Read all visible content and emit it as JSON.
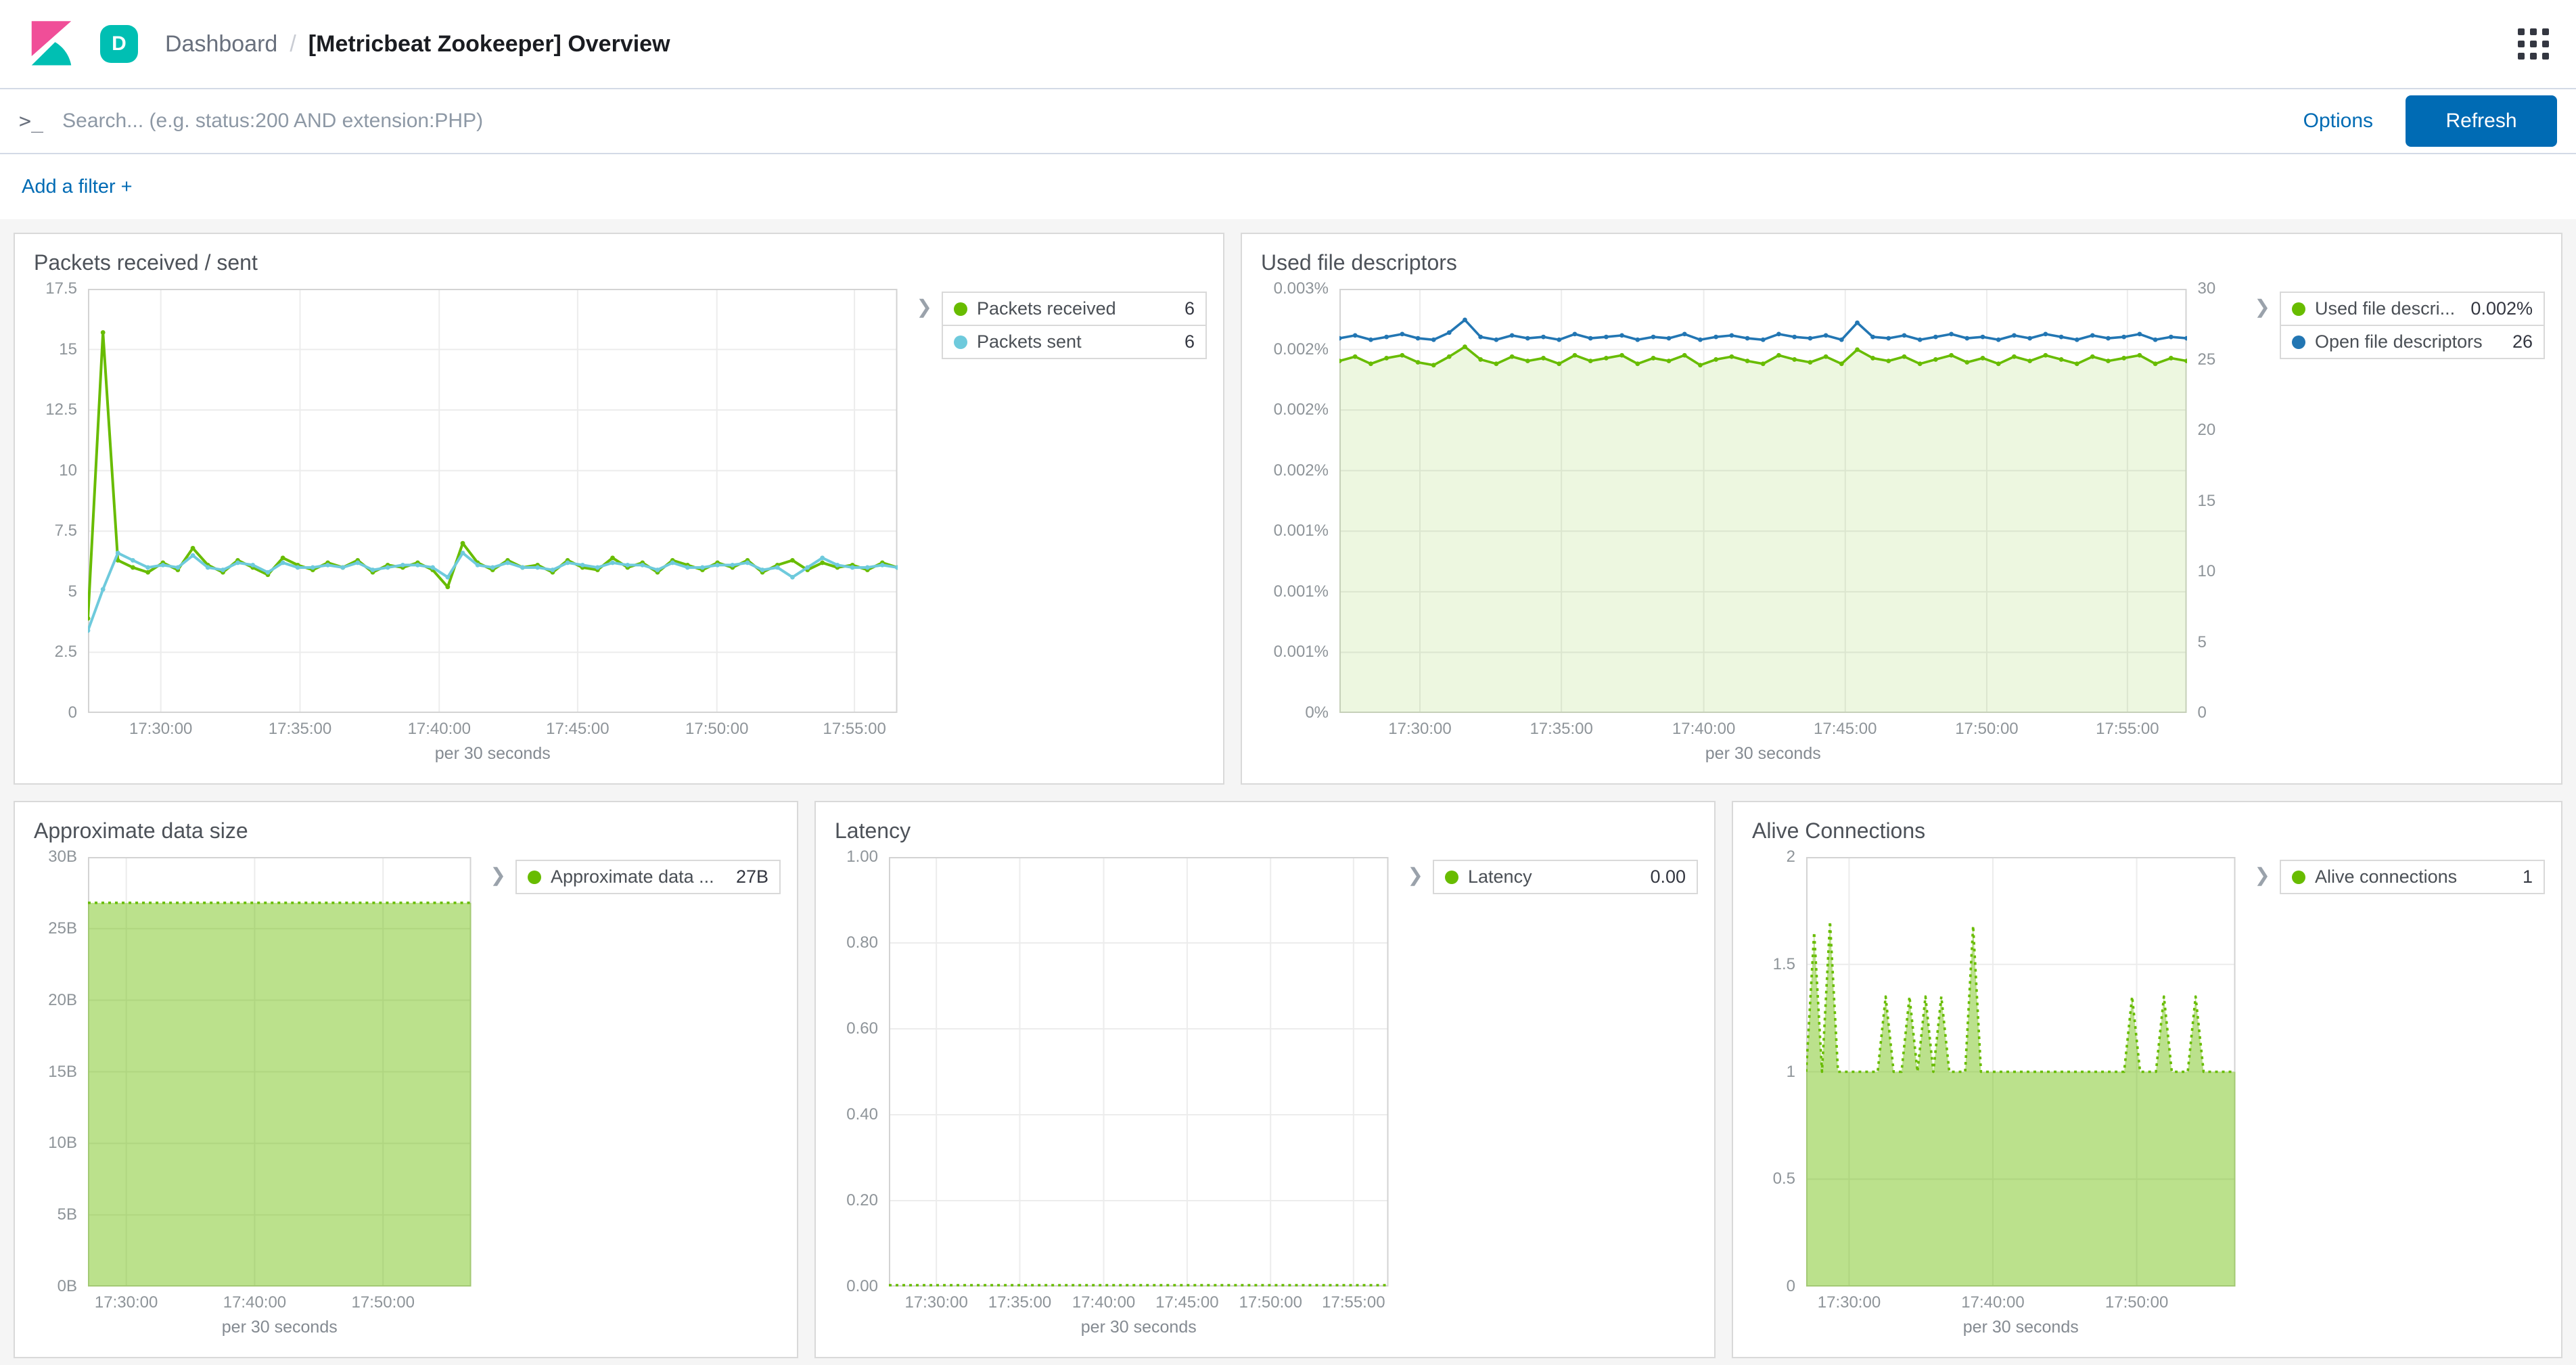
{
  "header": {
    "space_badge": "D",
    "breadcrumb_section": "Dashboard",
    "breadcrumb_separator": "/",
    "breadcrumb_page": "[Metricbeat Zookeeper] Overview"
  },
  "search": {
    "prompt_icon": ">_",
    "placeholder": "Search... (e.g. status:200 AND extension:PHP)",
    "options_label": "Options",
    "refresh_label": "Refresh"
  },
  "filter_bar": {
    "add_filter_label": "Add a filter +"
  },
  "colors": {
    "accent": "#006BB4",
    "green": "#68BC00",
    "light_blue": "#6ECADC",
    "blue": "#2276B3",
    "grid": "#ececec",
    "chart_border": "#d3d3d3"
  },
  "chart_data": [
    {
      "type": "line",
      "title": "Packets received / sent",
      "xlabel": "per 30 seconds",
      "ylim": [
        0,
        17.5
      ],
      "y_tick_labels": [
        "17.5",
        "15",
        "12.5",
        "10",
        "7.5",
        "5",
        "2.5",
        "0"
      ],
      "x_ticks": {
        "labels": [
          "17:30:00",
          "17:35:00",
          "17:40:00",
          "17:45:00",
          "17:50:00",
          "17:55:00"
        ],
        "positions": [
          0.09,
          0.262,
          0.434,
          0.605,
          0.777,
          0.947
        ]
      },
      "series": [
        {
          "name": "Packets received",
          "color": "#68BC00",
          "width": 2,
          "markers": true,
          "values": [
            3.9,
            15.7,
            6.3,
            6.0,
            5.8,
            6.2,
            5.9,
            6.8,
            6.1,
            5.8,
            6.3,
            6.0,
            5.7,
            6.4,
            6.1,
            5.9,
            6.2,
            6.0,
            6.3,
            5.8,
            6.1,
            6.0,
            6.2,
            5.9,
            5.2,
            7.0,
            6.2,
            5.9,
            6.3,
            6.0,
            6.1,
            5.8,
            6.3,
            6.0,
            5.9,
            6.4,
            6.0,
            6.2,
            5.8,
            6.3,
            6.1,
            5.9,
            6.2,
            6.0,
            6.3,
            5.8,
            6.1,
            6.3,
            5.9,
            6.2,
            6.0,
            6.1,
            5.9,
            6.2,
            6.0
          ]
        },
        {
          "name": "Packets sent",
          "color": "#6ECADC",
          "width": 2,
          "markers": true,
          "values": [
            3.4,
            5.1,
            6.6,
            6.3,
            6.0,
            6.1,
            6.0,
            6.5,
            6.0,
            5.9,
            6.2,
            6.1,
            5.8,
            6.2,
            6.0,
            6.0,
            6.1,
            6.0,
            6.2,
            5.9,
            6.0,
            6.1,
            6.1,
            6.0,
            5.6,
            6.6,
            6.1,
            6.0,
            6.2,
            6.0,
            6.0,
            5.9,
            6.2,
            6.1,
            6.0,
            6.2,
            6.1,
            6.1,
            5.9,
            6.2,
            6.0,
            6.0,
            6.1,
            6.1,
            6.2,
            5.9,
            6.0,
            5.6,
            6.0,
            6.4,
            6.1,
            6.0,
            6.0,
            6.1,
            6.0
          ]
        }
      ],
      "legend": [
        {
          "label": "Packets received",
          "value": "6",
          "color": "#68BC00"
        },
        {
          "label": "Packets sent",
          "value": "6",
          "color": "#6ECADC"
        }
      ]
    },
    {
      "type": "line",
      "title": "Used file descriptors",
      "xlabel": "per 30 seconds",
      "ylim": [
        0,
        0.003
      ],
      "y2lim": [
        0,
        30
      ],
      "y_tick_labels": [
        "0.003%",
        "0.002%",
        "0.002%",
        "0.002%",
        "0.001%",
        "0.001%",
        "0.001%",
        "0%"
      ],
      "y2_tick_labels": [
        "30",
        "25",
        "20",
        "15",
        "10",
        "5",
        "0"
      ],
      "x_ticks": {
        "labels": [
          "17:30:00",
          "17:35:00",
          "17:40:00",
          "17:45:00",
          "17:50:00",
          "17:55:00"
        ],
        "positions": [
          0.095,
          0.262,
          0.43,
          0.597,
          0.764,
          0.93
        ]
      },
      "series": [
        {
          "name": "Used file descriptors",
          "color": "#68BC00",
          "width": 1.8,
          "markers": true,
          "fill": "rgba(104,188,0,0.12)",
          "values": [
            0.00249,
            0.00252,
            0.00247,
            0.00251,
            0.00253,
            0.00248,
            0.00246,
            0.00252,
            0.00259,
            0.0025,
            0.00247,
            0.00252,
            0.00249,
            0.00251,
            0.00247,
            0.00253,
            0.00249,
            0.00251,
            0.00253,
            0.00247,
            0.00251,
            0.00249,
            0.00253,
            0.00246,
            0.0025,
            0.00252,
            0.00249,
            0.00247,
            0.00253,
            0.0025,
            0.00248,
            0.00252,
            0.00247,
            0.00257,
            0.00251,
            0.00249,
            0.00252,
            0.00247,
            0.0025,
            0.00253,
            0.00248,
            0.00251,
            0.00247,
            0.00252,
            0.00249,
            0.00253,
            0.0025,
            0.00247,
            0.00252,
            0.00249,
            0.00251,
            0.00253,
            0.00247,
            0.00251,
            0.00249
          ]
        },
        {
          "name": "Open file descriptors",
          "color": "#2276B3",
          "axis": "y2",
          "width": 1.8,
          "markers": true,
          "values": [
            26.5,
            26.7,
            26.4,
            26.6,
            26.8,
            26.5,
            26.4,
            26.9,
            27.8,
            26.6,
            26.4,
            26.7,
            26.5,
            26.6,
            26.4,
            26.8,
            26.5,
            26.6,
            26.7,
            26.4,
            26.6,
            26.5,
            26.8,
            26.4,
            26.6,
            26.7,
            26.5,
            26.4,
            26.8,
            26.6,
            26.5,
            26.7,
            26.4,
            27.6,
            26.6,
            26.5,
            26.7,
            26.4,
            26.6,
            26.8,
            26.5,
            26.6,
            26.4,
            26.7,
            26.5,
            26.8,
            26.6,
            26.4,
            26.7,
            26.5,
            26.6,
            26.8,
            26.4,
            26.6,
            26.5
          ]
        }
      ],
      "legend": [
        {
          "label": "Used file descri...",
          "value": "0.002%",
          "color": "#68BC00"
        },
        {
          "label": "Open file descriptors",
          "value": "26",
          "color": "#2276B3"
        }
      ]
    },
    {
      "type": "area",
      "title": "Approximate data size",
      "xlabel": "per 30 seconds",
      "ylim": [
        0,
        30
      ],
      "y_tick_labels": [
        "30B",
        "25B",
        "20B",
        "15B",
        "10B",
        "5B",
        "0B"
      ],
      "x_ticks": {
        "labels": [
          "17:30:00",
          "17:40:00",
          "17:50:00"
        ],
        "positions": [
          0.1,
          0.435,
          0.77
        ]
      },
      "series": [
        {
          "name": "Approximate data size",
          "color": "#68BC00",
          "width": 1.8,
          "dotted": true,
          "fill": "rgba(104,188,0,0.45)",
          "values": [
            26.8,
            26.8,
            26.8,
            26.8,
            26.8,
            26.8,
            26.8,
            26.8,
            26.8,
            26.8,
            26.8,
            26.8,
            26.8,
            26.8,
            26.8,
            26.8,
            26.8,
            26.8,
            26.8,
            26.8,
            26.8,
            26.8,
            26.8,
            26.8,
            26.8,
            26.8,
            26.8,
            26.8,
            26.8,
            26.8,
            26.8,
            26.8,
            26.8,
            26.8,
            26.8,
            26.8,
            26.8,
            26.8,
            26.8,
            26.8
          ]
        }
      ],
      "legend": [
        {
          "label": "Approximate data ...",
          "value": "27B",
          "color": "#68BC00"
        }
      ]
    },
    {
      "type": "line",
      "title": "Latency",
      "xlabel": "per 30 seconds",
      "ylim": [
        0,
        1
      ],
      "y_tick_labels": [
        "1.00",
        "0.80",
        "0.60",
        "0.40",
        "0.20",
        "0.00"
      ],
      "x_ticks": {
        "labels": [
          "17:30:00",
          "17:35:00",
          "17:40:00",
          "17:45:00",
          "17:50:00",
          "17:55:00"
        ],
        "positions": [
          0.095,
          0.262,
          0.43,
          0.597,
          0.764,
          0.93
        ]
      },
      "series": [
        {
          "name": "Latency",
          "color": "#68BC00",
          "width": 1.8,
          "dotted": true,
          "values": [
            0.003,
            0.003,
            0.003,
            0.003,
            0.003,
            0.003,
            0.003,
            0.003,
            0.003,
            0.003,
            0.003,
            0.003,
            0.003,
            0.003,
            0.003,
            0.003,
            0.003,
            0.003,
            0.003,
            0.003,
            0.003,
            0.003,
            0.003,
            0.003,
            0.003,
            0.003,
            0.003,
            0.003,
            0.003,
            0.003,
            0.003,
            0.003,
            0.003,
            0.003,
            0.003,
            0.003,
            0.003,
            0.003,
            0.003,
            0.003
          ]
        }
      ],
      "legend": [
        {
          "label": "Latency",
          "value": "0.00",
          "color": "#68BC00"
        }
      ]
    },
    {
      "type": "area",
      "title": "Alive Connections",
      "xlabel": "per 30 seconds",
      "ylim": [
        0,
        2
      ],
      "y_tick_labels": [
        "2",
        "1.5",
        "1",
        "0.5",
        "0"
      ],
      "x_ticks": {
        "labels": [
          "17:30:00",
          "17:40:00",
          "17:50:00"
        ],
        "positions": [
          0.1,
          0.435,
          0.77
        ]
      },
      "series": [
        {
          "name": "Alive connections",
          "color": "#68BC00",
          "width": 1.8,
          "dotted": true,
          "fill": "rgba(104,188,0,0.45)",
          "values": [
            1,
            1.65,
            1,
            1.7,
            1,
            1,
            1,
            1,
            1,
            1,
            1.35,
            1,
            1,
            1.35,
            1,
            1.35,
            1,
            1.35,
            1,
            1,
            1,
            1.68,
            1,
            1,
            1,
            1,
            1,
            1,
            1,
            1,
            1,
            1,
            1,
            1,
            1,
            1,
            1,
            1,
            1,
            1,
            1,
            1.35,
            1,
            1,
            1,
            1.35,
            1,
            1,
            1,
            1.35,
            1,
            1,
            1,
            1,
            1
          ]
        }
      ],
      "legend": [
        {
          "label": "Alive connections",
          "value": "1",
          "color": "#68BC00"
        }
      ]
    }
  ]
}
